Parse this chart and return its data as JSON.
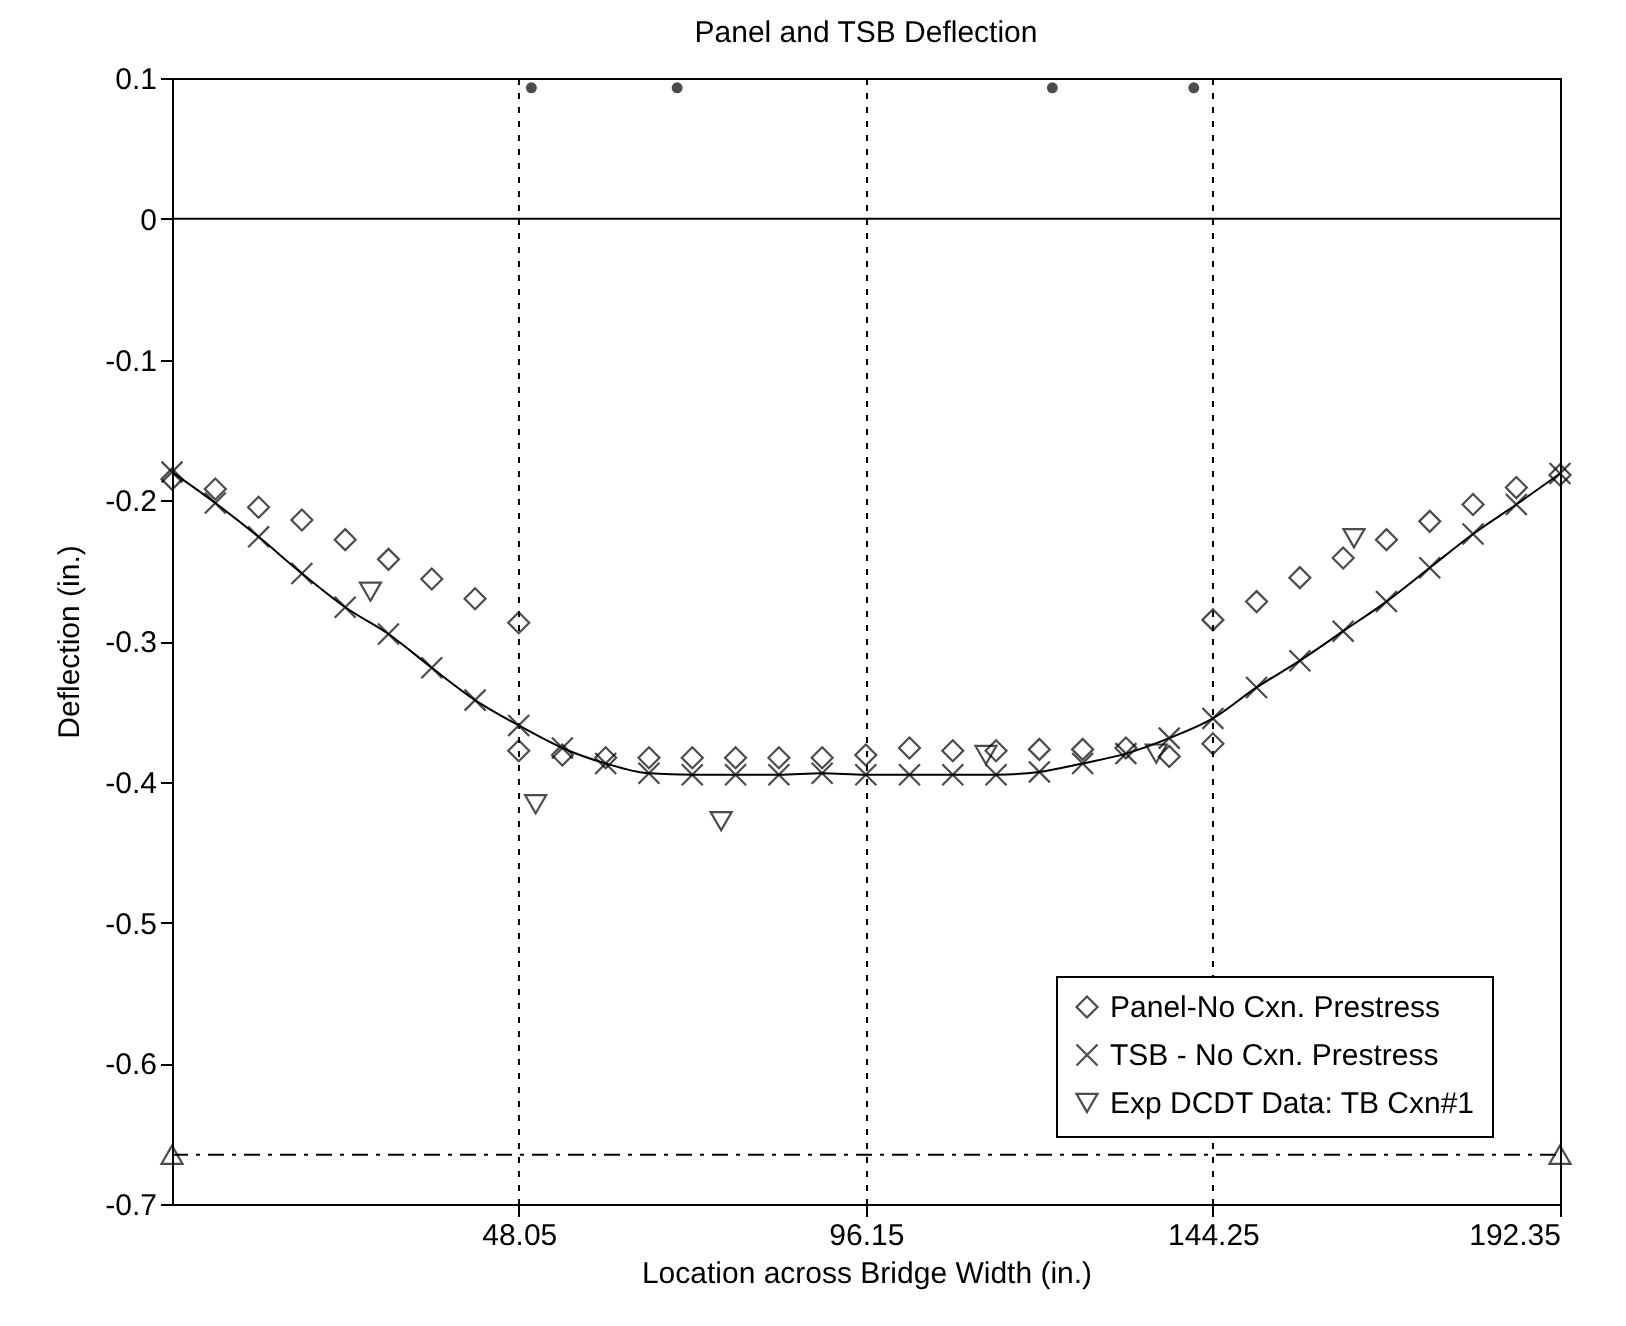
{
  "chart_data": {
    "type": "scatter",
    "title": "Panel and TSB Deflection",
    "xlabel": "Location across Bridge Width (in.)",
    "ylabel": "Deflection (in.)",
    "xlim": [
      0,
      192.35
    ],
    "xticks": [
      {
        "value": 48.05,
        "label": "48.05"
      },
      {
        "value": 96.15,
        "label": "96.15"
      },
      {
        "value": 144.25,
        "label": "144.25"
      },
      {
        "value": 192.35,
        "label": "192.35"
      }
    ],
    "ylim": [
      -0.7,
      0.1
    ],
    "yticks": [
      {
        "value": -0.7,
        "label": "-0.7"
      },
      {
        "value": -0.6,
        "label": "-0.6"
      },
      {
        "value": -0.5,
        "label": "-0.5"
      },
      {
        "value": -0.4,
        "label": "-0.4"
      },
      {
        "value": -0.3,
        "label": "-0.3"
      },
      {
        "value": -0.2,
        "label": "-0.2"
      },
      {
        "value": -0.1,
        "label": "-0.1"
      },
      0,
      {
        "value": 0.1,
        "label": "0.1"
      }
    ],
    "grid": "x",
    "legend": "bottom right",
    "ref_lines": [
      {
        "axis": "y",
        "value": 0,
        "color": "#000000",
        "line_style": "solid"
      }
    ],
    "series": [
      {
        "name": "Panel-No Cxn. Prestress",
        "marker": "diamond",
        "color": "#000000",
        "x": [
          0,
          6,
          12,
          18,
          24,
          30,
          36,
          42,
          48.05,
          48.05,
          54.1,
          60.1,
          66.1,
          72.1,
          78.1,
          84.1,
          90.1,
          96.15,
          102.2,
          108.2,
          114.2,
          120.2,
          126.2,
          132.2,
          138.2,
          144.25,
          144.25,
          150.3,
          156.3,
          162.3,
          168.3,
          174.3,
          180.3,
          186.3,
          192.35
        ],
        "values": [
          -0.185,
          -0.192,
          -0.205,
          -0.214,
          -0.228,
          -0.242,
          -0.256,
          -0.27,
          -0.287,
          -0.378,
          -0.381,
          -0.383,
          -0.383,
          -0.383,
          -0.383,
          -0.383,
          -0.383,
          -0.381,
          -0.376,
          -0.378,
          -0.378,
          -0.377,
          -0.377,
          -0.376,
          -0.382,
          -0.373,
          -0.285,
          -0.272,
          -0.255,
          -0.241,
          -0.228,
          -0.215,
          -0.203,
          -0.191,
          -0.182
        ]
      },
      {
        "name": "TSB - No Cxn. Prestress",
        "type": "line",
        "marker": "cross",
        "line_style": "solid",
        "color": "#000000",
        "x": [
          0,
          6,
          12,
          18,
          24,
          30,
          36,
          42,
          48.05,
          54.1,
          60.1,
          66.1,
          72.1,
          78.1,
          84.1,
          90.1,
          96.15,
          102.2,
          108.2,
          114.2,
          120.2,
          126.2,
          132.2,
          138.2,
          144.25,
          150.3,
          156.3,
          162.3,
          168.3,
          174.3,
          180.3,
          186.3,
          192.35
        ],
        "values": [
          -0.18,
          -0.202,
          -0.226,
          -0.252,
          -0.276,
          -0.295,
          -0.319,
          -0.342,
          -0.36,
          -0.376,
          -0.387,
          -0.394,
          -0.395,
          -0.395,
          -0.395,
          -0.394,
          -0.395,
          -0.395,
          -0.395,
          -0.395,
          -0.393,
          -0.387,
          -0.38,
          -0.369,
          -0.355,
          -0.333,
          -0.314,
          -0.293,
          -0.272,
          -0.248,
          -0.224,
          -0.203,
          -0.181
        ]
      },
      {
        "name": "Exp DCDT Data: TB Cxn#1",
        "marker": "triangle",
        "color": "#000000",
        "x": [
          27.5,
          50.4,
          76.1,
          112.8,
          136.4,
          163.8
        ],
        "values": [
          -0.265,
          -0.416,
          -0.428,
          -0.381,
          -0.38,
          -0.227
        ]
      },
      {
        "marker": "circle",
        "color": "#000000",
        "x": [
          49.8,
          70.0,
          122.0,
          141.6
        ],
        "values": [
          0.093,
          0.093,
          0.093,
          0.093
        ]
      },
      {
        "type": "line",
        "marker": "triangle",
        "line_style": "dashed",
        "color": "#000000",
        "x": [
          0,
          192.35
        ],
        "values": [
          -0.665,
          -0.665
        ]
      }
    ]
  }
}
